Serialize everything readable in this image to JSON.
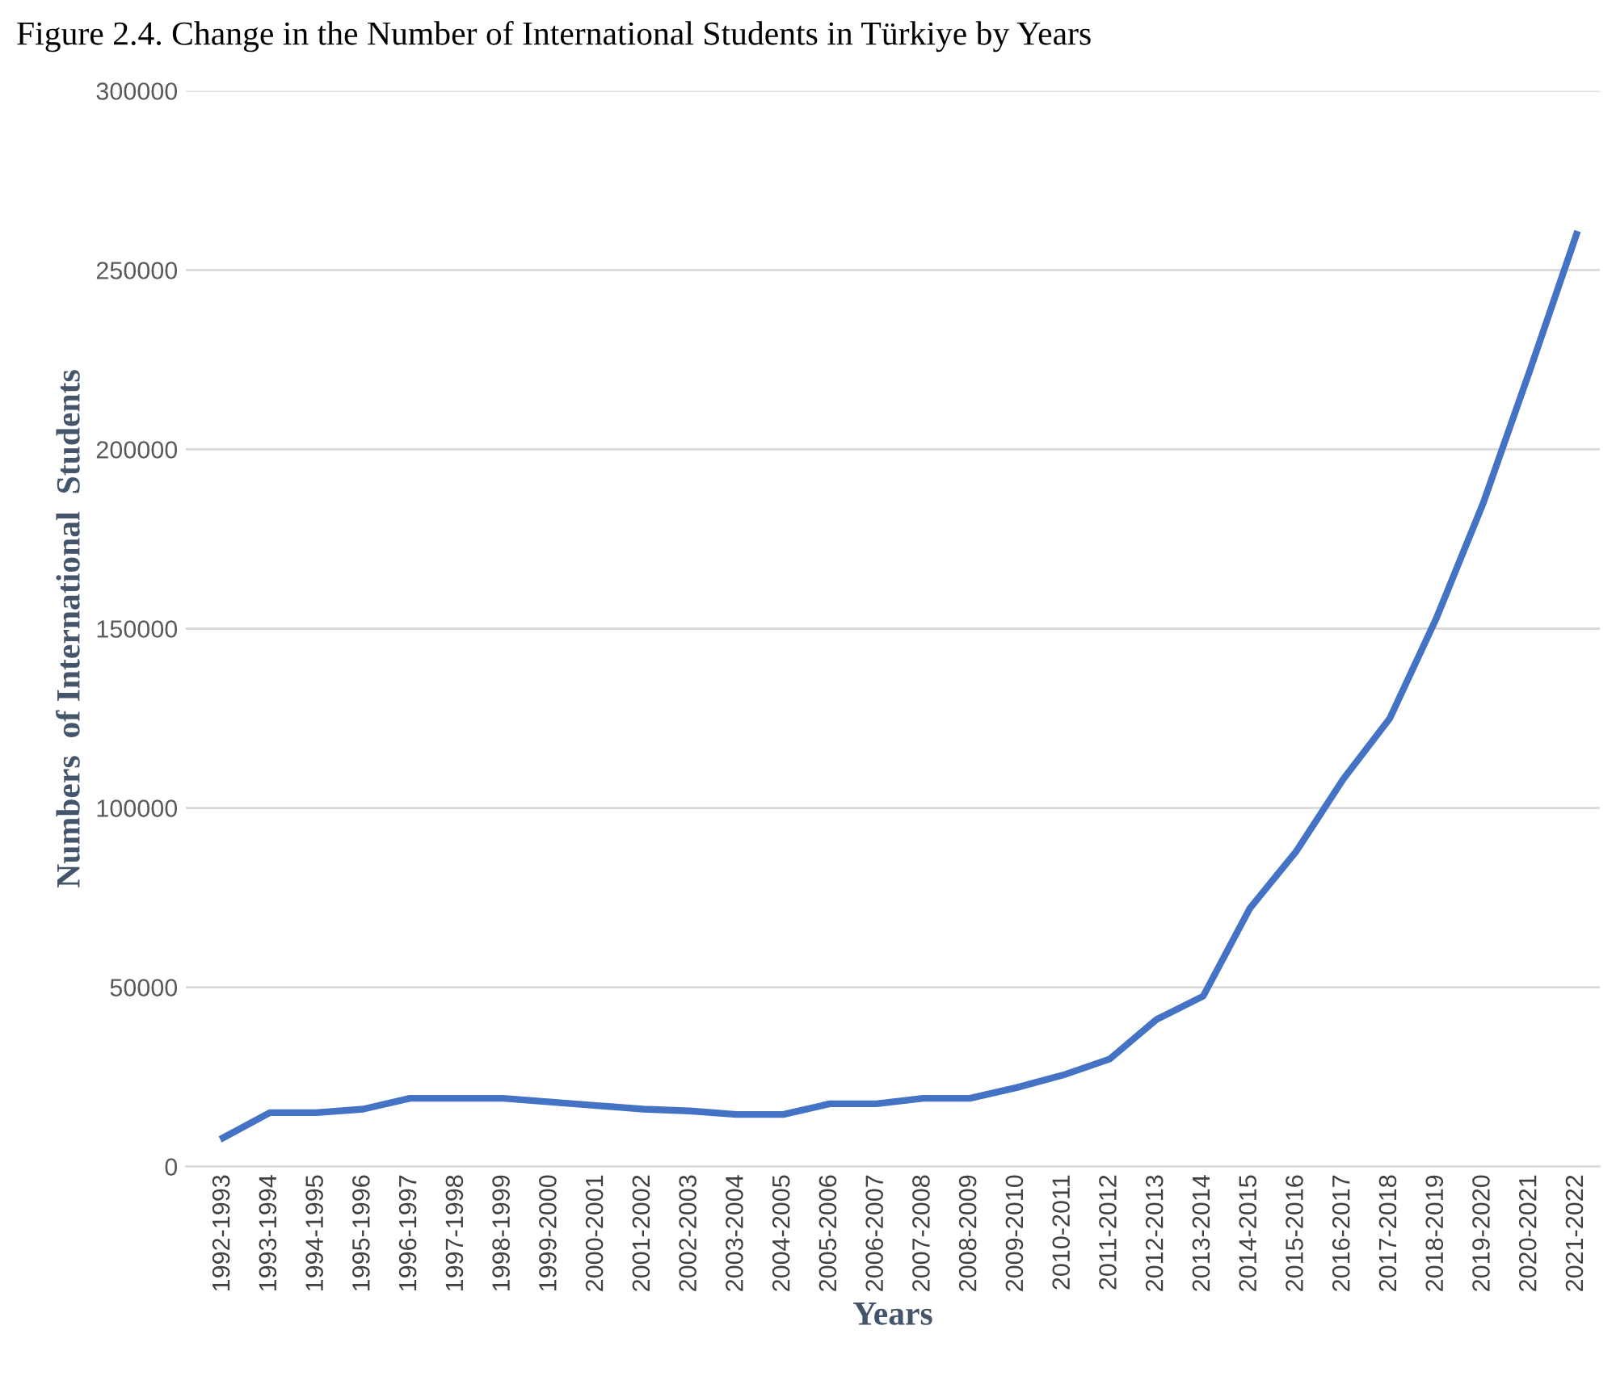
{
  "chart_data": {
    "type": "line",
    "title": "Figure 2.4. Change in the Number of International Students in Türkiye by Years",
    "xlabel": "Years",
    "ylabel": "Numbers  of International  Students",
    "categories": [
      "1992-1993",
      "1993-1994",
      "1994-1995",
      "1995-1996",
      "1996-1997",
      "1997-1998",
      "1998-1999",
      "1999-2000",
      "2000-2001",
      "2001-2002",
      "2002-2003",
      "2003-2004",
      "2004-2005",
      "2005-2006",
      "2006-2007",
      "2007-2008",
      "2008-2009",
      "2009-2010",
      "2010-2011",
      "2011-2012",
      "2012-2013",
      "2013-2014",
      "2014-2015",
      "2015-2016",
      "2016-2017",
      "2017-2018",
      "2018-2019",
      "2019-2020",
      "2020-2021",
      "2021-2022"
    ],
    "series": [
      {
        "color": "#4472c4",
        "values": [
          8000,
          15000,
          15000,
          16000,
          19000,
          19000,
          19000,
          18000,
          17000,
          16000,
          15500,
          14500,
          14500,
          17500,
          17500,
          19000,
          19000,
          22000,
          25500,
          30000,
          41000,
          47500,
          72000,
          88000,
          108000,
          125000,
          153000,
          185000,
          222000,
          260000
        ]
      }
    ],
    "ylim": [
      0,
      300000
    ],
    "yticks": [
      0,
      50000,
      100000,
      150000,
      200000,
      250000,
      300000
    ],
    "grid": "y",
    "marker": "none",
    "line_style": "solid"
  }
}
